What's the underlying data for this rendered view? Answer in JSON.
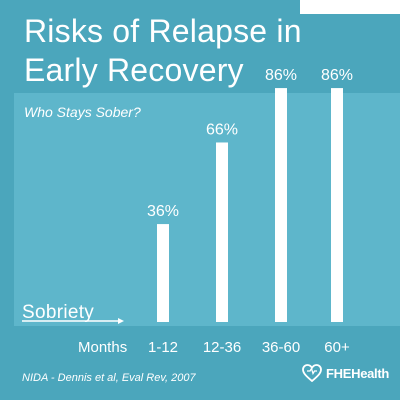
{
  "colors": {
    "background": "#4ba6bc",
    "panel": "#5eb6cb",
    "bars": "#ffffff",
    "text": "#ffffff"
  },
  "header": {
    "title_line1": "Risks of Relapse in",
    "title_line2": "Early Recovery"
  },
  "chart_data": {
    "type": "bar",
    "title": "Who Stays Sober?",
    "xlabel": "Months",
    "ylabel": "Sobriety",
    "categories": [
      "1-12",
      "12-36",
      "36-60",
      "60+"
    ],
    "values": [
      36,
      66,
      86,
      86
    ],
    "data_labels": [
      "36%",
      "66%",
      "86%",
      "86%"
    ],
    "ylim": [
      0,
      100
    ],
    "grid": false,
    "legend": "none"
  },
  "footer": {
    "source": "NIDA - Dennis et al, Eval Rev, 2007",
    "brand_name": "FHEHealth",
    "brand_icon": "heart-icon"
  }
}
